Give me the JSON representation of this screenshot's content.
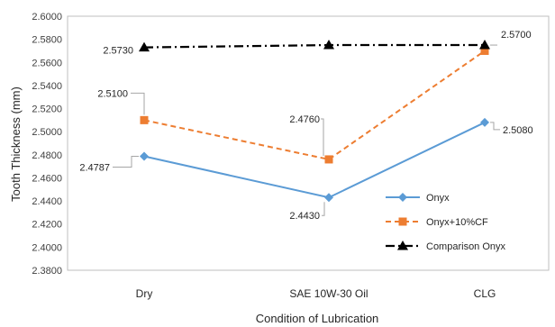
{
  "chart_data": {
    "type": "line",
    "categories": [
      "Dry",
      "SAE 10W-30 Oil",
      "CLG"
    ],
    "xlabel": "Condition of Lubrication",
    "ylabel": "Tooth Thickness (mm)",
    "ylim": [
      2.38,
      2.6
    ],
    "ytick_step": 0.02,
    "ytick_labels": [
      "2.3800",
      "2.4000",
      "2.4200",
      "2.4400",
      "2.4600",
      "2.4800",
      "2.5000",
      "2.5200",
      "2.5400",
      "2.5600",
      "2.5800",
      "2.6000"
    ],
    "grid": false,
    "legend_position": "bottom-right",
    "series": [
      {
        "name": "Onyx",
        "values": [
          2.4787,
          2.443,
          2.508
        ],
        "labels": [
          "2.4787",
          "2.4430",
          "2.5080"
        ],
        "color": "#5b9bd5",
        "line_style": "solid",
        "marker": "diamond"
      },
      {
        "name": "Onyx+10%CF",
        "values": [
          2.51,
          2.476,
          2.57
        ],
        "labels": [
          "2.5100",
          "2.4760",
          "2.5700"
        ],
        "color": "#ed7d31",
        "line_style": "dashed",
        "marker": "square"
      },
      {
        "name": "Comparison Onyx",
        "values": [
          2.573,
          2.575,
          2.575
        ],
        "labels": [
          "2.5730",
          "",
          ""
        ],
        "color": "#000000",
        "line_style": "dash-dot",
        "marker": "triangle"
      }
    ]
  }
}
